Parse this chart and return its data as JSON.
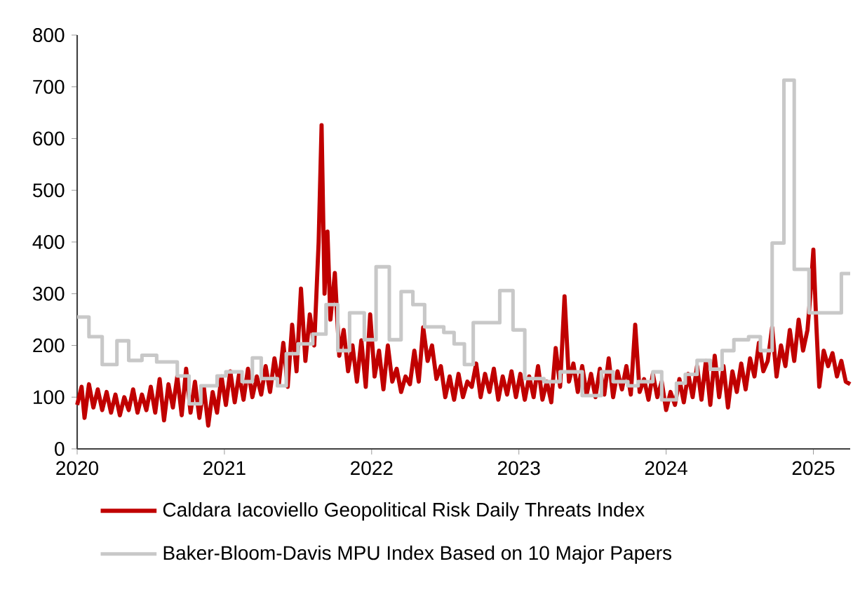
{
  "chart_data": {
    "type": "line",
    "xlim": [
      2020,
      2025.25
    ],
    "xticks": [
      2020,
      2021,
      2022,
      2023,
      2024,
      2025
    ],
    "ylim": [
      0,
      800
    ],
    "yticks": [
      0,
      100,
      200,
      300,
      400,
      500,
      600,
      700,
      800
    ],
    "legend": "bottom",
    "series": [
      {
        "name": "Caldara Iacoviello Geopolitical Risk Daily Threats Index",
        "color": "#c00000",
        "x": [
          2020.0,
          2020.03,
          2020.05,
          2020.08,
          2020.11,
          2020.14,
          2020.17,
          2020.2,
          2020.23,
          2020.26,
          2020.29,
          2020.32,
          2020.35,
          2020.38,
          2020.41,
          2020.44,
          2020.47,
          2020.5,
          2020.53,
          2020.56,
          2020.59,
          2020.62,
          2020.65,
          2020.68,
          2020.71,
          2020.74,
          2020.77,
          2020.8,
          2020.83,
          2020.86,
          2020.89,
          2020.92,
          2020.95,
          2020.98,
          2021.01,
          2021.04,
          2021.07,
          2021.1,
          2021.13,
          2021.16,
          2021.19,
          2021.22,
          2021.25,
          2021.28,
          2021.31,
          2021.34,
          2021.37,
          2021.4,
          2021.43,
          2021.46,
          2021.49,
          2021.52,
          2021.55,
          2021.58,
          2021.61,
          2021.64,
          2021.66,
          2021.68,
          2021.7,
          2021.72,
          2021.75,
          2021.78,
          2021.81,
          2021.84,
          2021.87,
          2021.9,
          2021.93,
          2021.96,
          2021.99,
          2022.02,
          2022.05,
          2022.08,
          2022.11,
          2022.14,
          2022.17,
          2022.2,
          2022.23,
          2022.26,
          2022.29,
          2022.32,
          2022.35,
          2022.38,
          2022.41,
          2022.44,
          2022.47,
          2022.5,
          2022.53,
          2022.56,
          2022.59,
          2022.62,
          2022.65,
          2022.68,
          2022.71,
          2022.74,
          2022.77,
          2022.8,
          2022.83,
          2022.86,
          2022.89,
          2022.92,
          2022.95,
          2022.98,
          2023.01,
          2023.04,
          2023.07,
          2023.1,
          2023.13,
          2023.16,
          2023.19,
          2023.22,
          2023.25,
          2023.28,
          2023.31,
          2023.34,
          2023.37,
          2023.4,
          2023.43,
          2023.46,
          2023.49,
          2023.52,
          2023.55,
          2023.58,
          2023.61,
          2023.64,
          2023.67,
          2023.7,
          2023.73,
          2023.76,
          2023.79,
          2023.82,
          2023.85,
          2023.88,
          2023.91,
          2023.94,
          2023.97,
          2024.0,
          2024.03,
          2024.06,
          2024.09,
          2024.12,
          2024.15,
          2024.18,
          2024.21,
          2024.24,
          2024.27,
          2024.3,
          2024.33,
          2024.36,
          2024.39,
          2024.42,
          2024.45,
          2024.48,
          2024.51,
          2024.54,
          2024.57,
          2024.6,
          2024.63,
          2024.66,
          2024.69,
          2024.72,
          2024.75,
          2024.78,
          2024.81,
          2024.84,
          2024.87,
          2024.9,
          2024.93,
          2024.96,
          2024.98,
          2025.0,
          2025.02,
          2025.04,
          2025.07,
          2025.1,
          2025.13,
          2025.16,
          2025.19,
          2025.22,
          2025.25
        ],
        "values": [
          85,
          120,
          60,
          125,
          80,
          115,
          75,
          110,
          70,
          105,
          65,
          100,
          75,
          115,
          70,
          105,
          75,
          120,
          70,
          135,
          55,
          125,
          80,
          140,
          65,
          155,
          70,
          130,
          60,
          120,
          45,
          110,
          70,
          140,
          85,
          150,
          90,
          145,
          95,
          155,
          100,
          140,
          105,
          160,
          110,
          175,
          125,
          205,
          120,
          240,
          150,
          310,
          170,
          260,
          200,
          400,
          626,
          300,
          420,
          250,
          340,
          180,
          230,
          150,
          200,
          130,
          210,
          120,
          260,
          140,
          190,
          115,
          200,
          130,
          155,
          110,
          140,
          125,
          190,
          130,
          235,
          170,
          200,
          135,
          160,
          100,
          140,
          95,
          145,
          100,
          130,
          120,
          165,
          100,
          145,
          110,
          155,
          95,
          140,
          105,
          150,
          100,
          145,
          95,
          140,
          100,
          160,
          95,
          130,
          90,
          195,
          120,
          295,
          130,
          165,
          110,
          160,
          105,
          145,
          100,
          155,
          105,
          175,
          100,
          150,
          115,
          160,
          105,
          240,
          110,
          135,
          95,
          145,
          100,
          130,
          75,
          110,
          85,
          135,
          90,
          145,
          100,
          160,
          95,
          170,
          85,
          180,
          100,
          160,
          80,
          150,
          110,
          165,
          115,
          175,
          140,
          205,
          150,
          170,
          235,
          140,
          200,
          160,
          230,
          170,
          250,
          190,
          230,
          300,
          385,
          240,
          120,
          190,
          160,
          185,
          140,
          170,
          130,
          125
        ]
      },
      {
        "name": "Baker-Bloom-Davis MPU Index Based on 10 Major Papers",
        "type": "step",
        "color": "#c8c8c8",
        "x": [
          2020.0,
          2020.08,
          2020.17,
          2020.27,
          2020.35,
          2020.44,
          2020.54,
          2020.68,
          2020.76,
          2020.84,
          2020.95,
          2021.01,
          2021.12,
          2021.19,
          2021.25,
          2021.36,
          2021.42,
          2021.5,
          2021.6,
          2021.69,
          2021.77,
          2021.85,
          2021.95,
          2022.03,
          2022.12,
          2022.2,
          2022.28,
          2022.36,
          2022.49,
          2022.56,
          2022.63,
          2022.69,
          2022.87,
          2022.96,
          2023.04,
          2023.17,
          2023.28,
          2023.43,
          2023.56,
          2023.64,
          2023.74,
          2023.81,
          2023.91,
          2023.97,
          2024.07,
          2024.13,
          2024.21,
          2024.3,
          2024.38,
          2024.46,
          2024.56,
          2024.64,
          2024.72,
          2024.8,
          2024.87,
          2024.97,
          2025.19,
          2025.25
        ],
        "values": [
          255,
          217,
          163,
          209,
          171,
          181,
          168,
          141,
          87,
          122,
          141,
          149,
          130,
          176,
          136,
          122,
          184,
          203,
          222,
          279,
          190,
          263,
          211,
          352,
          211,
          304,
          279,
          236,
          225,
          203,
          163,
          244,
          306,
          230,
          136,
          130,
          149,
          103,
          149,
          130,
          122,
          130,
          149,
          95,
          127,
          144,
          171,
          154,
          190,
          211,
          217,
          190,
          398,
          713,
          347,
          263,
          339,
          339
        ]
      }
    ]
  }
}
